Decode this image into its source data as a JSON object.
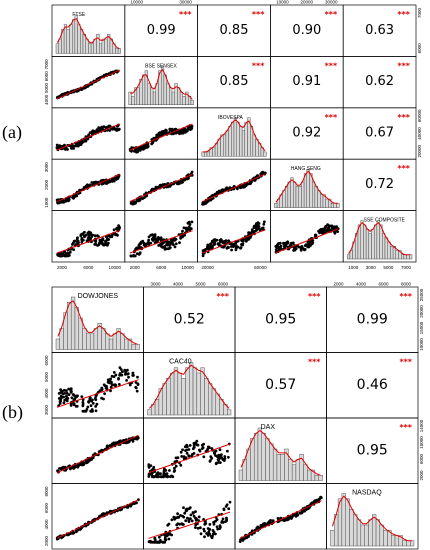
{
  "panel_labels": [
    "(a)",
    "(b)"
  ],
  "significance": "***",
  "colors": {
    "fit": "#e00000",
    "points": "#000000",
    "bars": "#d9d9d9",
    "stars": "#e00000"
  },
  "chart_data": [
    {
      "type": "scatter",
      "kind": "pairs-plot",
      "variables": [
        "FTSE",
        "BSE SENSEX",
        "IBOVESPA",
        "HANG SENG",
        "SSE COMPOSITE"
      ],
      "correlations": [
        {
          "pair": [
            "FTSE",
            "BSE SENSEX"
          ],
          "value": "0.99",
          "significance": "***"
        },
        {
          "pair": [
            "FTSE",
            "IBOVESPA"
          ],
          "value": "0.85",
          "significance": "***"
        },
        {
          "pair": [
            "FTSE",
            "HANG SENG"
          ],
          "value": "0.90",
          "significance": "***"
        },
        {
          "pair": [
            "FTSE",
            "SSE COMPOSITE"
          ],
          "value": "0.63",
          "significance": "***"
        },
        {
          "pair": [
            "BSE SENSEX",
            "IBOVESPA"
          ],
          "value": "0.85",
          "significance": "***"
        },
        {
          "pair": [
            "BSE SENSEX",
            "HANG SENG"
          ],
          "value": "0.91",
          "significance": "***"
        },
        {
          "pair": [
            "BSE SENSEX",
            "SSE COMPOSITE"
          ],
          "value": "0.62",
          "significance": "***"
        },
        {
          "pair": [
            "IBOVESPA",
            "HANG SENG"
          ],
          "value": "0.92",
          "significance": "***"
        },
        {
          "pair": [
            "IBOVESPA",
            "SSE COMPOSITE"
          ],
          "value": "0.67",
          "significance": "***"
        },
        {
          "pair": [
            "HANG SENG",
            "SSE COMPOSITE"
          ],
          "value": "0.72",
          "significance": "***"
        }
      ],
      "axes": {
        "bottom": [
          [
            "2000",
            "6000",
            "10000"
          ],
          [
            "2000",
            "6000",
            "10000"
          ],
          [
            "20000",
            "60000"
          ],
          [],
          [
            "1000",
            "3000",
            "5000",
            "7000"
          ]
        ],
        "top": [
          [],
          [
            "10000",
            "30000"
          ],
          [],
          [
            "10000",
            "20000",
            "30000"
          ],
          []
        ],
        "left": [
          [],
          [
            "4000",
            "5000",
            "6000",
            "7000"
          ],
          [],
          [
            "1000",
            "2000",
            "3000"
          ],
          []
        ],
        "right": [
          [
            "6000",
            "7000"
          ],
          [],
          [
            "20000",
            "40000",
            "60000"
          ],
          [],
          []
        ]
      },
      "histograms": [
        [
          2,
          3,
          5,
          6,
          5,
          6,
          7,
          8,
          6,
          5,
          4,
          3,
          2,
          2,
          3,
          4,
          2,
          3,
          3,
          4,
          3,
          2,
          1,
          1
        ],
        [
          3,
          2,
          4,
          4,
          6,
          7,
          8,
          5,
          4,
          3,
          5,
          8,
          9,
          7,
          5,
          4,
          3,
          5,
          4,
          3,
          2,
          3,
          2,
          1
        ],
        [
          1,
          1,
          1,
          2,
          2,
          3,
          4,
          5,
          5,
          6,
          7,
          8,
          9,
          8,
          7,
          6,
          8,
          9,
          7,
          5,
          4,
          3,
          2,
          1
        ],
        [
          1,
          2,
          3,
          4,
          5,
          6,
          7,
          6,
          5,
          5,
          6,
          8,
          9,
          8,
          6,
          5,
          4,
          3,
          3,
          2,
          2,
          1,
          1,
          1
        ],
        [
          1,
          2,
          4,
          6,
          8,
          9,
          8,
          7,
          6,
          7,
          8,
          9,
          8,
          6,
          5,
          4,
          3,
          3,
          2,
          2,
          1,
          1,
          1,
          1
        ]
      ]
    },
    {
      "type": "scatter",
      "kind": "pairs-plot",
      "variables": [
        "DOWJONES",
        "CAC40",
        "DAX",
        "NASDAQ"
      ],
      "correlations": [
        {
          "pair": [
            "DOWJONES",
            "CAC40"
          ],
          "value": "0.52",
          "significance": "***"
        },
        {
          "pair": [
            "DOWJONES",
            "DAX"
          ],
          "value": "0.95",
          "significance": "***"
        },
        {
          "pair": [
            "DOWJONES",
            "NASDAQ"
          ],
          "value": "0.99",
          "significance": "***"
        },
        {
          "pair": [
            "CAC40",
            "DAX"
          ],
          "value": "0.57",
          "significance": "***"
        },
        {
          "pair": [
            "CAC40",
            "NASDAQ"
          ],
          "value": "0.46",
          "significance": "***"
        },
        {
          "pair": [
            "DAX",
            "NASDAQ"
          ],
          "value": "0.95",
          "significance": "***"
        }
      ],
      "axes": {
        "bottom": [
          [
            "10000",
            "15000",
            "20000",
            "25000"
          ],
          [
            "3000",
            "4000",
            "5000",
            "6000"
          ],
          [
            "2000",
            "6000",
            "10000",
            "14000"
          ],
          []
        ],
        "top": [
          [],
          [
            "3000",
            "4000",
            "5000",
            "6000"
          ],
          [],
          [
            "2000",
            "4000",
            "6000",
            "8000"
          ]
        ],
        "left": [
          [],
          [
            "3000",
            "4000",
            "5000",
            "6000"
          ],
          [],
          [
            "2000",
            "4000",
            "6000",
            "8000"
          ]
        ],
        "right": [
          [
            "10000",
            "15000",
            "20000",
            "25000"
          ],
          [],
          [
            "2000",
            "6000",
            "10000",
            "14000"
          ],
          []
        ]
      },
      "histograms": [
        [
          2,
          4,
          7,
          9,
          10,
          8,
          6,
          4,
          3,
          3,
          4,
          5,
          4,
          3,
          2,
          3,
          4,
          3,
          2,
          2,
          1,
          1
        ],
        [
          1,
          2,
          3,
          5,
          6,
          7,
          8,
          9,
          8,
          7,
          9,
          10,
          9,
          8,
          9,
          7,
          6,
          5,
          4,
          3,
          2,
          1
        ],
        [
          2,
          4,
          6,
          8,
          9,
          10,
          9,
          8,
          7,
          6,
          5,
          5,
          6,
          4,
          3,
          4,
          5,
          3,
          2,
          2,
          1,
          1
        ],
        [
          3,
          6,
          9,
          10,
          9,
          7,
          6,
          5,
          4,
          4,
          5,
          6,
          5,
          4,
          3,
          3,
          2,
          2,
          2,
          1,
          1,
          1
        ]
      ]
    }
  ]
}
